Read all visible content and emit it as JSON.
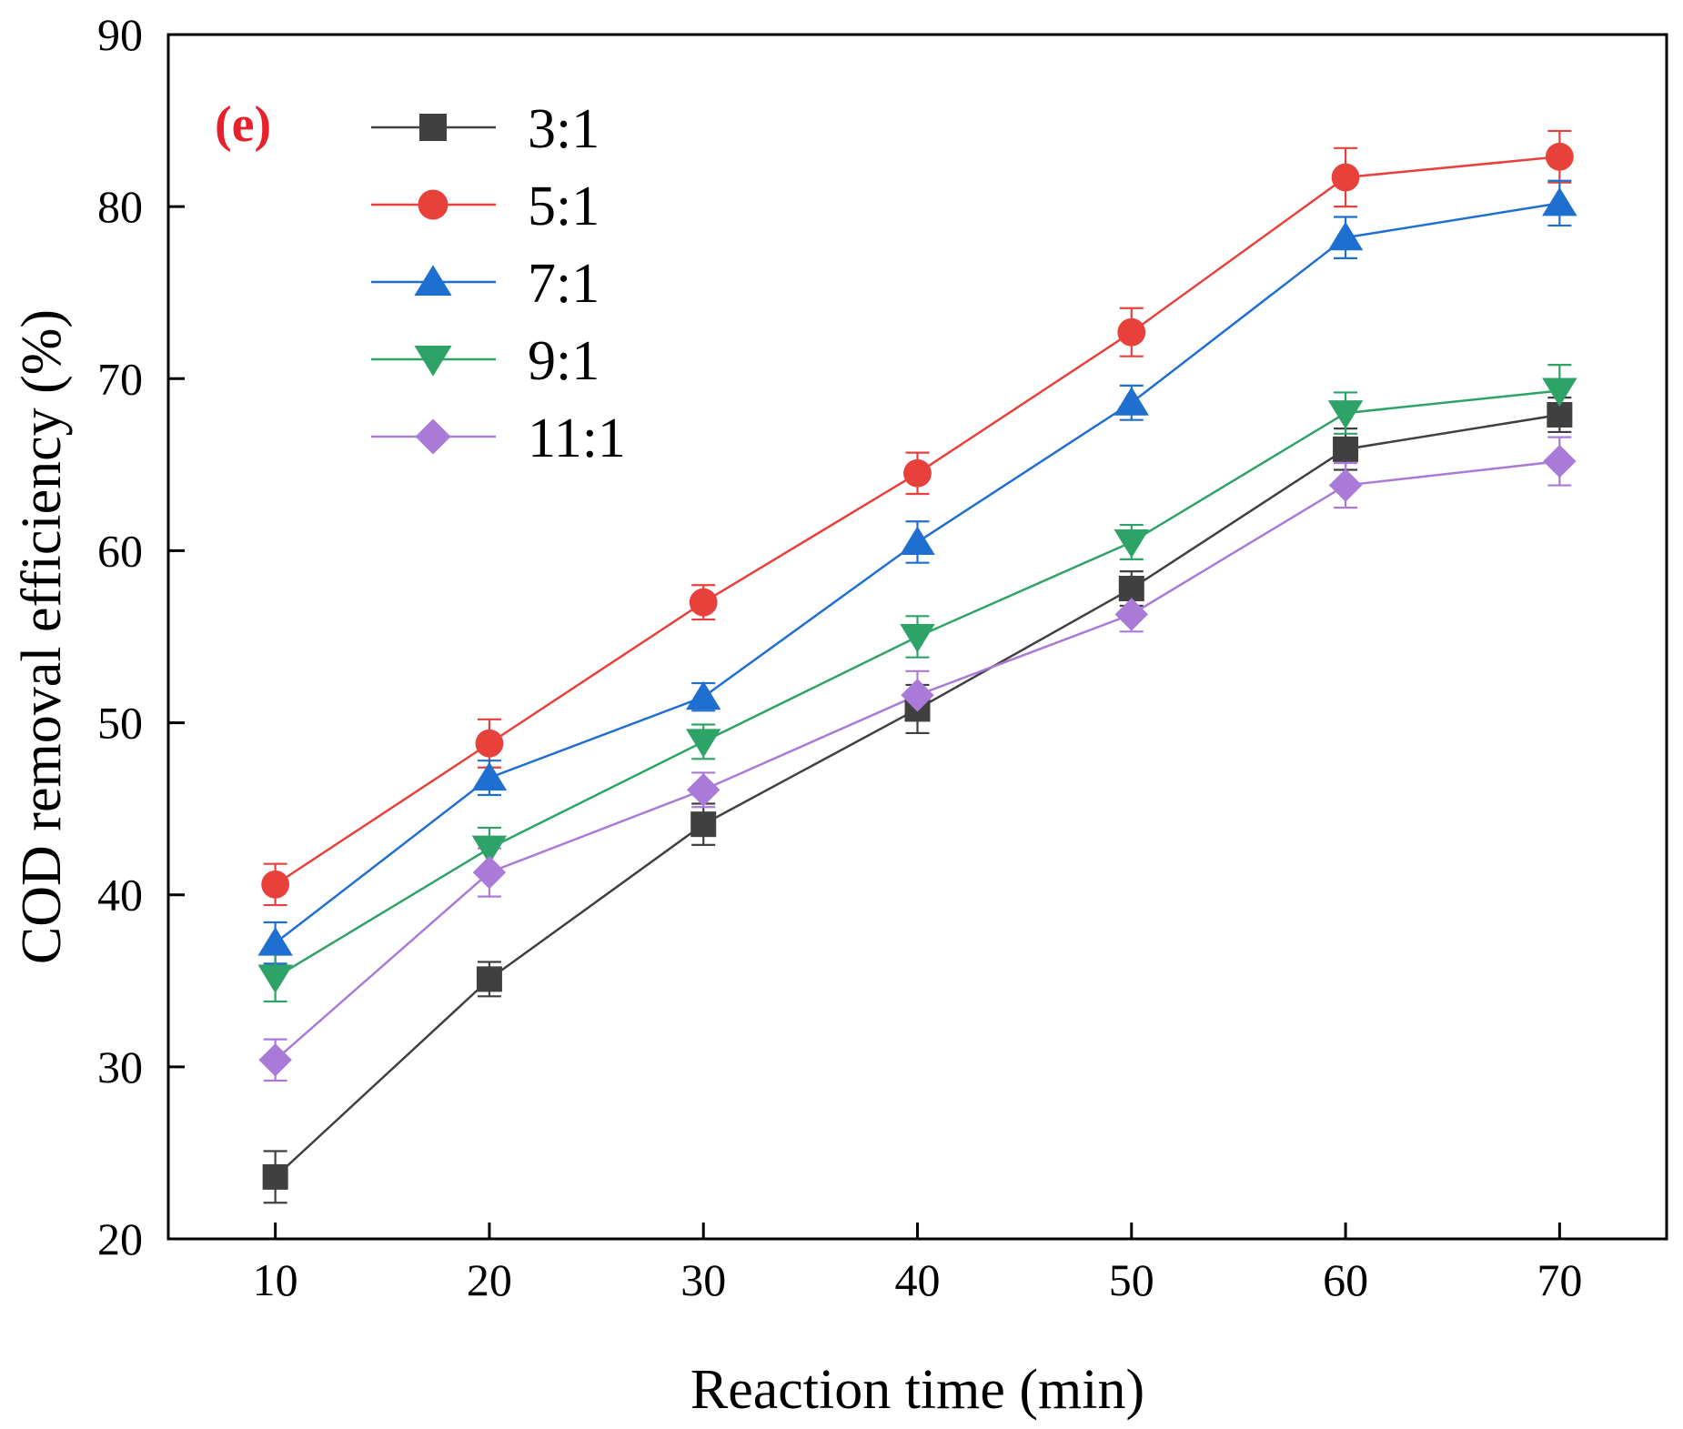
{
  "chart_data": {
    "type": "line",
    "panel_label": "(e)",
    "xlabel": "Reaction time (min)",
    "ylabel": "COD removal efficiency (%)",
    "xlim": [
      5,
      75
    ],
    "ylim": [
      20,
      90
    ],
    "x_ticks": [
      10,
      20,
      30,
      40,
      50,
      60,
      70
    ],
    "y_ticks": [
      20,
      30,
      40,
      50,
      60,
      70,
      80,
      90
    ],
    "x": [
      10,
      20,
      30,
      40,
      50,
      60,
      70
    ],
    "grid": false,
    "legend_position": "top-left",
    "error_bars": true,
    "series": [
      {
        "name": "3:1",
        "color": "#404040",
        "marker": "square",
        "values": [
          23.6,
          35.1,
          44.1,
          50.8,
          57.8,
          65.9,
          67.9
        ],
        "errors": [
          1.5,
          1.0,
          1.2,
          1.4,
          1.0,
          1.2,
          1.0
        ]
      },
      {
        "name": "5:1",
        "color": "#e8413c",
        "marker": "circle",
        "values": [
          40.6,
          48.8,
          57.0,
          64.5,
          72.7,
          81.7,
          82.9
        ],
        "errors": [
          1.2,
          1.4,
          1.0,
          1.2,
          1.4,
          1.7,
          1.5
        ]
      },
      {
        "name": "7:1",
        "color": "#1f6fd1",
        "marker": "triangle-up",
        "values": [
          37.2,
          46.8,
          51.5,
          60.5,
          68.6,
          78.2,
          80.2
        ],
        "errors": [
          1.2,
          1.0,
          0.8,
          1.2,
          1.0,
          1.2,
          1.3
        ]
      },
      {
        "name": "9:1",
        "color": "#2ea367",
        "marker": "triangle-down",
        "values": [
          35.2,
          42.7,
          48.9,
          55.0,
          60.5,
          68.0,
          69.3
        ],
        "errors": [
          1.4,
          1.2,
          1.0,
          1.2,
          1.0,
          1.2,
          1.5
        ]
      },
      {
        "name": "11:1",
        "color": "#a97ad8",
        "marker": "diamond",
        "values": [
          30.4,
          41.3,
          46.1,
          51.6,
          56.3,
          63.8,
          65.2
        ],
        "errors": [
          1.2,
          1.4,
          1.0,
          1.4,
          1.0,
          1.3,
          1.4
        ]
      }
    ]
  }
}
